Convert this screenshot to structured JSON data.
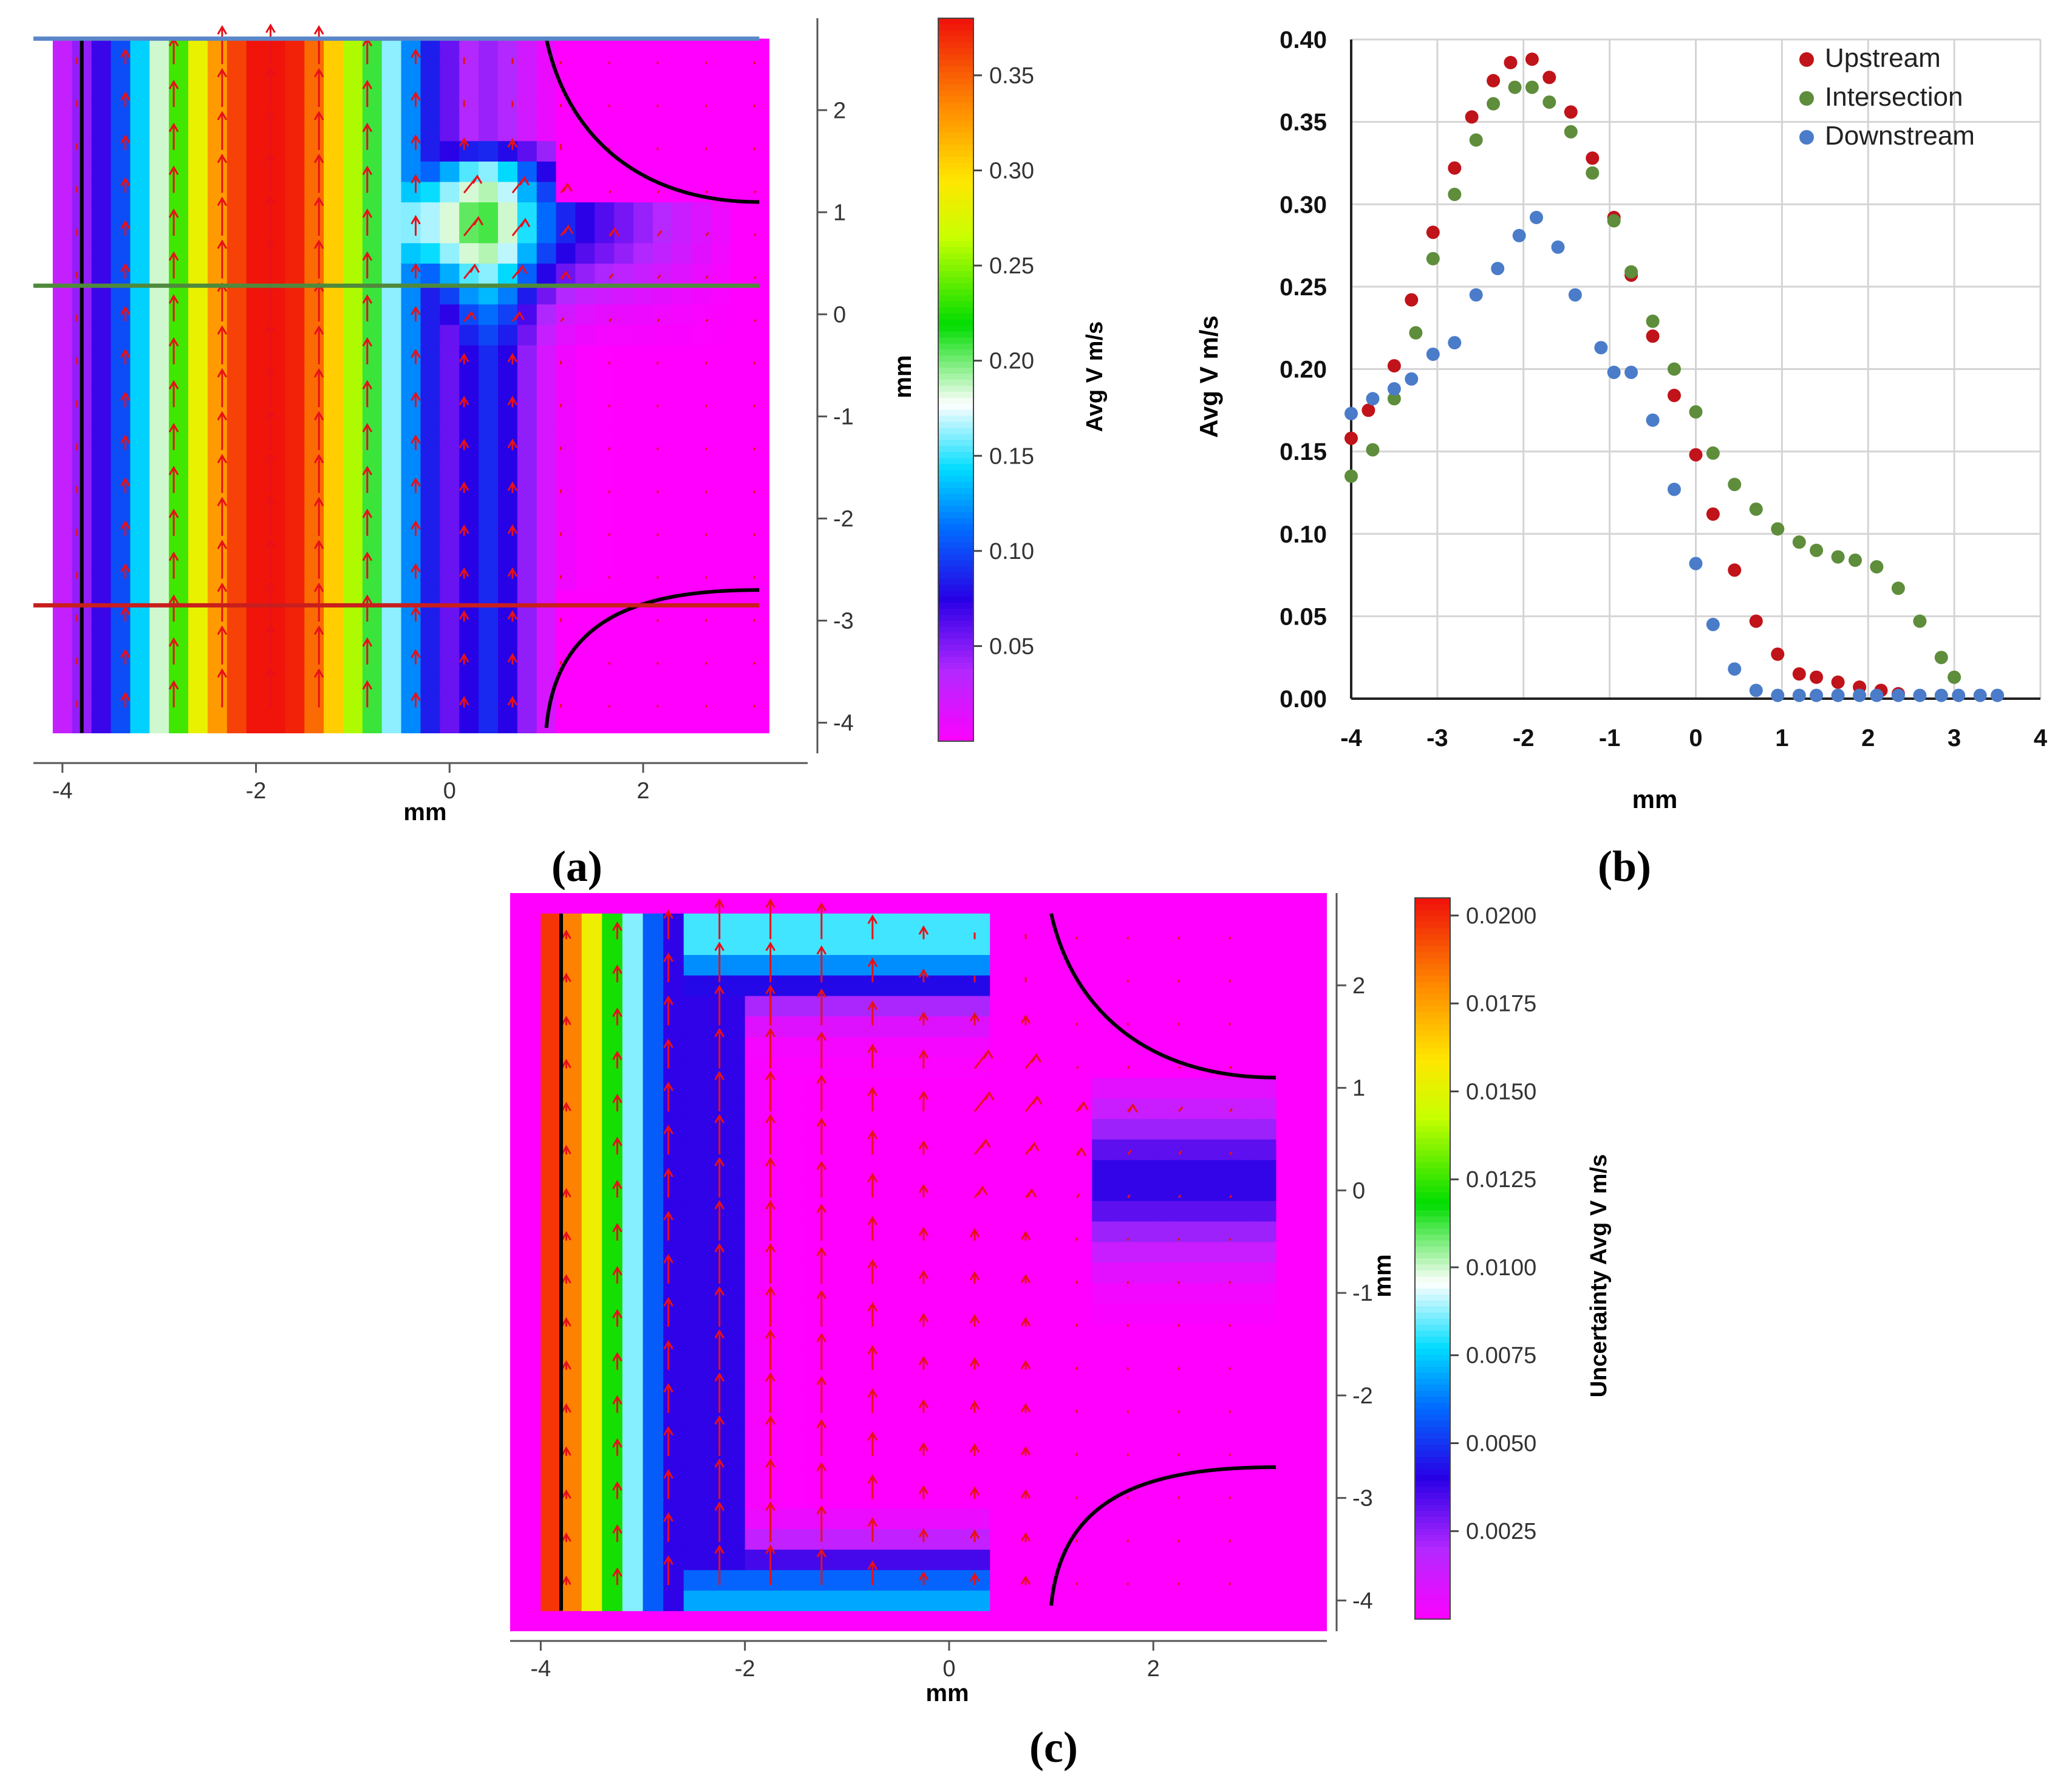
{
  "figure": {
    "panel_labels": {
      "a": "(a)",
      "b": "(b)",
      "c": "(c)"
    }
  },
  "chart_data": [
    {
      "id": "a",
      "type": "heatmap",
      "title": "",
      "xlabel": "mm",
      "ylabel": "mm",
      "xlim": [
        -4.3,
        3.7
      ],
      "ylim": [
        -4.3,
        2.9
      ],
      "x_ticks": [
        -4,
        -2,
        0,
        2
      ],
      "y_ticks": [
        2,
        1,
        0,
        -1,
        -2,
        -3,
        -4
      ],
      "colorbar": {
        "label": "Avg V m/s",
        "ticks": [
          0.35,
          0.3,
          0.25,
          0.2,
          0.15,
          0.1,
          0.05
        ],
        "range": [
          0.0,
          0.38
        ]
      },
      "data_extent": {
        "x": [
          -4.1,
          3.2
        ],
        "y": [
          -4.1,
          2.7
        ]
      },
      "field_model": "avg_velocity",
      "profile_lines": [
        {
          "name": "Upstream",
          "y": -2.85,
          "color": "#c81e1e"
        },
        {
          "name": "Intersection",
          "y": 0.28,
          "color": "#4f8a3c"
        },
        {
          "name": "Downstream",
          "y": 2.7,
          "color": "#5a86c8"
        }
      ],
      "wall_vertical_x": -3.8
    },
    {
      "id": "b",
      "type": "scatter",
      "title": "",
      "xlabel": "mm",
      "ylabel": "Avg V   m/s",
      "xlim": [
        -4,
        4
      ],
      "ylim": [
        0.0,
        0.4
      ],
      "x_ticks": [
        -4,
        -3,
        -2,
        -1,
        0,
        1,
        2,
        3,
        4
      ],
      "y_ticks": [
        "0.00",
        "0.05",
        "0.10",
        "0.15",
        "0.20",
        "0.25",
        "0.30",
        "0.35",
        "0.40"
      ],
      "grid": true,
      "legend_position": "top-right",
      "series": [
        {
          "name": "Upstream",
          "color": "#c0131a",
          "x": [
            -4.0,
            -3.8,
            -3.5,
            -3.3,
            -3.05,
            -2.8,
            -2.6,
            -2.35,
            -2.15,
            -1.9,
            -1.7,
            -1.45,
            -1.2,
            -0.95,
            -0.75,
            -0.5,
            -0.25,
            0.0,
            0.2,
            0.45,
            0.7,
            0.95,
            1.2,
            1.4,
            1.65,
            1.9,
            2.15,
            2.35
          ],
          "y": [
            0.158,
            0.175,
            0.202,
            0.242,
            0.283,
            0.322,
            0.353,
            0.375,
            0.386,
            0.388,
            0.377,
            0.356,
            0.328,
            0.292,
            0.257,
            0.22,
            0.184,
            0.148,
            0.112,
            0.078,
            0.047,
            0.027,
            0.015,
            0.013,
            0.01,
            0.007,
            0.005,
            0.003
          ]
        },
        {
          "name": "Intersection",
          "color": "#5e8d3b",
          "x": [
            -4.0,
            -3.75,
            -3.5,
            -3.25,
            -3.05,
            -2.8,
            -2.55,
            -2.35,
            -2.1,
            -1.9,
            -1.7,
            -1.45,
            -1.2,
            -0.95,
            -0.75,
            -0.5,
            -0.25,
            0.0,
            0.2,
            0.45,
            0.7,
            0.95,
            1.2,
            1.4,
            1.65,
            1.85,
            2.1,
            2.35,
            2.6,
            2.85,
            3.0
          ],
          "y": [
            0.135,
            0.151,
            0.182,
            0.222,
            0.267,
            0.306,
            0.339,
            0.361,
            0.371,
            0.371,
            0.362,
            0.344,
            0.319,
            0.29,
            0.259,
            0.229,
            0.2,
            0.174,
            0.149,
            0.13,
            0.115,
            0.103,
            0.095,
            0.09,
            0.086,
            0.084,
            0.08,
            0.067,
            0.047,
            0.025,
            0.013
          ]
        },
        {
          "name": "Downstream",
          "color": "#4a7cc9",
          "x": [
            -4.0,
            -3.75,
            -3.5,
            -3.3,
            -3.05,
            -2.8,
            -2.55,
            -2.3,
            -2.05,
            -1.85,
            -1.6,
            -1.4,
            -1.1,
            -0.95,
            -0.75,
            -0.5,
            -0.25,
            -0.0,
            0.2,
            0.45,
            0.7,
            0.95,
            1.2,
            1.4,
            1.65,
            1.9,
            2.1,
            2.35,
            2.6,
            2.85,
            3.05,
            3.3,
            3.5
          ],
          "y": [
            0.173,
            0.182,
            0.188,
            0.194,
            0.209,
            0.216,
            0.245,
            0.261,
            0.281,
            0.292,
            0.274,
            0.245,
            0.213,
            0.198,
            0.198,
            0.169,
            0.127,
            0.082,
            0.045,
            0.018,
            0.005,
            0.002,
            0.002,
            0.002,
            0.002,
            0.002,
            0.002,
            0.002,
            0.002,
            0.002,
            0.002,
            0.002,
            0.002
          ]
        }
      ]
    },
    {
      "id": "c",
      "type": "heatmap",
      "title": "",
      "xlabel": "mm",
      "ylabel": "mm",
      "xlim": [
        -4.3,
        3.7
      ],
      "ylim": [
        -4.3,
        2.9
      ],
      "x_ticks": [
        -4,
        -2,
        0,
        2
      ],
      "y_ticks": [
        2,
        1,
        0,
        -1,
        -2,
        -3,
        -4
      ],
      "colorbar": {
        "label": "Uncertainty Avg V m/s",
        "ticks": [
          "0.0200",
          "0.0175",
          "0.0150",
          "0.0125",
          "0.0100",
          "0.0075",
          "0.0050",
          "0.0025"
        ],
        "range": [
          0.0,
          0.0205
        ]
      },
      "data_extent": {
        "x": [
          -4.0,
          3.2
        ],
        "y": [
          -4.1,
          2.7
        ]
      },
      "field_model": "uncertainty",
      "wall_vertical_x": -3.8
    }
  ]
}
